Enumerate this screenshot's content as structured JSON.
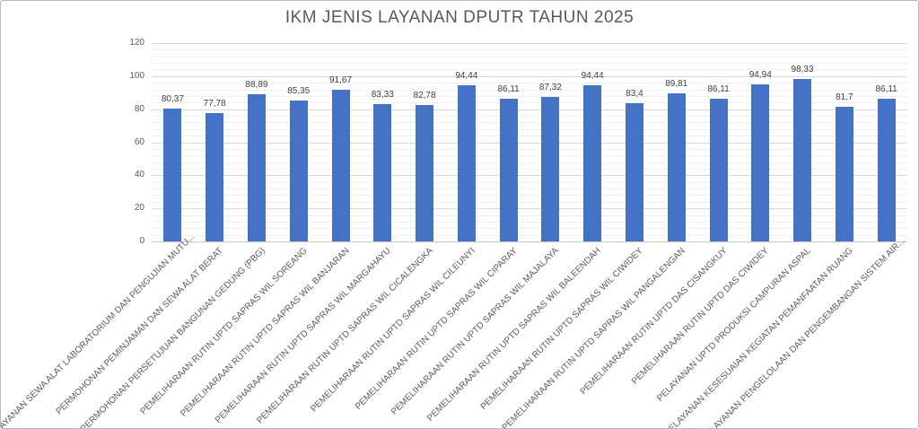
{
  "chart": {
    "title": "IKM JENIS LAYANAN DPUTR TAHUN 2025"
  },
  "chart_data": {
    "type": "bar",
    "title": "IKM JENIS LAYANAN DPUTR TAHUN 2025",
    "xlabel": "",
    "ylabel": "",
    "ylim": [
      0,
      120
    ],
    "yticks": [
      0,
      20,
      40,
      60,
      80,
      100,
      120
    ],
    "minor_grid_step": 4,
    "grid": true,
    "legend": "none",
    "decimal_separator": ",",
    "categories": [
      "PELAYANAN SEWA ALAT LABORATORIUM DAN PENGUJIAN MUTU...",
      "PERMOHONAN PEMINJAMAN DAN SEWA ALAT BERAT",
      "PERMOHONAN PERSETUJUAN BANGUNAN GEDUNG (PBG)",
      "PEMELIHARAAN RUTIN UPTD SAPRAS WIL SOREANG",
      "PEMELIHARAAN RUTIN UPTD SAPRAS WIL BANJARAN",
      "PEMELIHARAAN RUTIN UPTD SAPRAS WIL MARGAHAYU",
      "PEMELIHARAAN RUTIN UPTD SAPRAS WIL CICALENGKA",
      "PEMELIHARAAN RUTIN UPTD SAPRAS WIL CILEUNYI",
      "PEMELIHARAAN RUTIN UPTD SAPRAS WIL CIPARAY",
      "PEMELIHARAAN RUTIN UPTD SAPRAS WIL MAJALAYA",
      "PEMELIHARAAN RUTIN UPTD SAPRAS WIL BALEENDAH",
      "PEMELIHARAAN RUTIN UPTD SAPRAS WIL CIWIDEY",
      "PEMELIHARAAN RUTIN UPTD SAPRAS WIL PANGALENGAN",
      "PEMELIHARAAN RUTIN UPTD DAS CISANGKUY",
      "PEMELIHARAAN RUTIN UPTD DAS CIWIDEY",
      "PELAYANAN UPTD PRODUKSI CAMPURAN ASPAL",
      "PELAYANAN KESESUAIAN KEGIATAN PEMANFAATAN RUANG",
      "PELAYANAN PENGELOLAAN DAN PENGEMBANGAN SISTEM AIR..."
    ],
    "values": [
      80.37,
      77.78,
      88.89,
      85.35,
      91.67,
      83.33,
      82.78,
      94.44,
      86.11,
      87.32,
      94.44,
      83.4,
      89.81,
      86.11,
      94.94,
      98.33,
      81.7,
      86.11
    ],
    "value_labels": [
      "80,37",
      "77,78",
      "88,89",
      "85,35",
      "91,67",
      "83,33",
      "82,78",
      "94,44",
      "86,11",
      "87,32",
      "94,44",
      "83,4",
      "89,81",
      "86,11",
      "94,94",
      "98,33",
      "81,7",
      "86,11"
    ],
    "colors": {
      "bar": "#4472c4",
      "title_text": "#595959",
      "tick_text": "#595959",
      "value_label_text": "#404040",
      "major_gridline": "#d9d9d9",
      "minor_gridline": "#efefef",
      "background": "#ffffff"
    }
  }
}
